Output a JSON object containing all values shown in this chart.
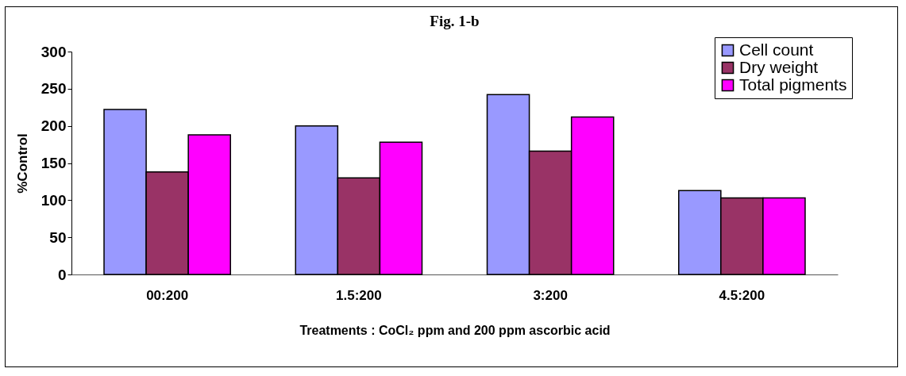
{
  "chart_data": {
    "type": "bar",
    "title": "Fig. 1-b",
    "xlabel": "Treatments : CoCl₂ ppm and 200 ppm ascorbic acid",
    "ylabel": "%Control",
    "categories": [
      "00:200",
      "1.5:200",
      "3:200",
      "4.5:200"
    ],
    "series": [
      {
        "name": "Cell count",
        "color": "#9999ff",
        "values": [
          222,
          200,
          242,
          113
        ]
      },
      {
        "name": "Dry weight",
        "color": "#993366",
        "values": [
          138,
          130,
          166,
          103
        ]
      },
      {
        "name": "Total pigments",
        "color": "#ff00ff",
        "values": [
          188,
          178,
          212,
          103
        ]
      }
    ],
    "ylim": [
      0,
      300
    ],
    "yticks": [
      0,
      50,
      100,
      150,
      200,
      250,
      300
    ],
    "grid": false,
    "legend": "top right"
  }
}
